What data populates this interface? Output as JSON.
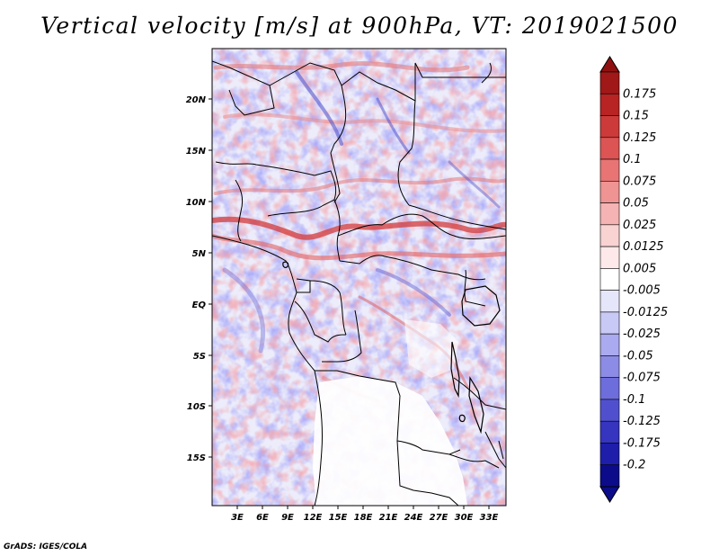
{
  "title": "Vertical velocity [m/s] at 900hPa, VT: 2019021500",
  "credit": "GrADS: IGES/COLA",
  "map": {
    "lon_labels": [
      "3E",
      "6E",
      "9E",
      "12E",
      "15E",
      "18E",
      "21E",
      "24E",
      "27E",
      "30E",
      "33E"
    ],
    "lat_labels": [
      "20N",
      "15N",
      "10N",
      "5N",
      "EQ",
      "5S",
      "10S",
      "15S"
    ],
    "lon_range_deg": [
      0.2,
      34.8
    ],
    "lat_range_deg": [
      -19.8,
      24.5
    ]
  },
  "colorbar": {
    "labels": [
      "0.175",
      "0.15",
      "0.125",
      "0.1",
      "0.075",
      "0.05",
      "0.025",
      "0.0125",
      "0.005",
      "-0.005",
      "-0.0125",
      "-0.025",
      "-0.05",
      "-0.075",
      "-0.1",
      "-0.125",
      "-0.175",
      "-0.2"
    ],
    "colors": [
      "#a01818",
      "#b82323",
      "#cc3a3a",
      "#dc5454",
      "#e87474",
      "#ef9393",
      "#f5b3b3",
      "#f9d2d2",
      "#fde9e9",
      "#ffffff",
      "#e6e6fb",
      "#c9c9f6",
      "#aaaaf0",
      "#8c8ce6",
      "#6d6ddc",
      "#5050cf",
      "#3535c0",
      "#1e1eab",
      "#0c0c8a"
    ],
    "top_arrow_color": "#901010",
    "bottom_arrow_color": "#0c0c8a"
  }
}
